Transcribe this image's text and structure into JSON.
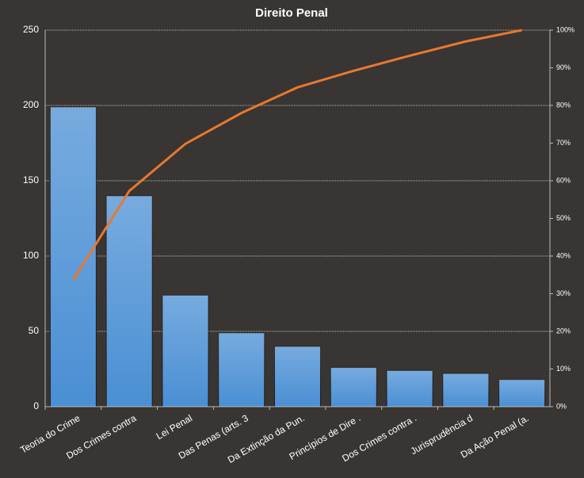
{
  "chart_data": {
    "type": "bar",
    "title": "Direito Penal",
    "categories": [
      "Teoria do Crime",
      "Dos Crimes contra",
      "Lei Penal",
      "Das Penas (arts. 3",
      "Da Extinção da Pun.",
      "Princípios de Dire .",
      "Dos Crimes contra .",
      "Jurisprudência d",
      "Da Ação Penal (a."
    ],
    "series": [
      {
        "type": "bar",
        "color": "#4a8fd4",
        "values": [
          199,
          140,
          74,
          49,
          40,
          26,
          24,
          22,
          18
        ]
      },
      {
        "type": "line",
        "color": "#e8782f",
        "axis": "y2",
        "values": [
          33.6,
          57.3,
          69.8,
          78.0,
          84.8,
          89.2,
          93.2,
          97.0,
          100
        ]
      }
    ],
    "ylim": [
      0,
      250
    ],
    "yticks": [
      0,
      50,
      100,
      150,
      200,
      250
    ],
    "y2lim": [
      0,
      100
    ],
    "y2ticks": [
      {
        "value": 0,
        "label": "0%"
      },
      {
        "value": 10,
        "label": "10%"
      },
      {
        "value": 20,
        "label": "20%"
      },
      {
        "value": 30,
        "label": "30%"
      },
      {
        "value": 40,
        "label": "40%"
      },
      {
        "value": 50,
        "label": "50%"
      },
      {
        "value": 60,
        "label": "60%"
      },
      {
        "value": 70,
        "label": "70%"
      },
      {
        "value": 80,
        "label": "80%"
      },
      {
        "value": 90,
        "label": "90%"
      },
      {
        "value": 100,
        "label": "100%"
      }
    ],
    "grid": true
  }
}
